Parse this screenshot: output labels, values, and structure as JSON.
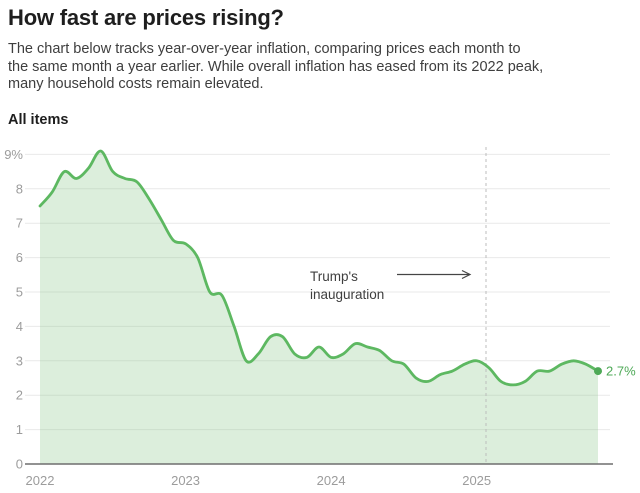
{
  "header": {
    "title": "How fast are prices rising?",
    "subtitle_lines": [
      "The chart below tracks year-over-year inflation, comparing prices each month to",
      "the same month a year earlier. While overall inflation has eased from its 2022 peak,",
      "many household costs remain elevated."
    ],
    "series_label": "All items"
  },
  "chart_data": {
    "type": "area",
    "title": "All items",
    "unit": "percent year-over-year",
    "x_start": "2022-01",
    "x_end": "2025-11",
    "frequency": "monthly",
    "series": [
      {
        "name": "All items",
        "values_by_year": {
          "2022": [
            7.5,
            7.9,
            8.5,
            8.3,
            8.6,
            9.1,
            8.5,
            8.3,
            8.2,
            7.7,
            7.1,
            6.5
          ],
          "2023": [
            6.4,
            6.0,
            5.0,
            4.9,
            4.0,
            3.0,
            3.2,
            3.7,
            3.7,
            3.2,
            3.1,
            3.4
          ],
          "2024": [
            3.1,
            3.2,
            3.5,
            3.4,
            3.3,
            3.0,
            2.9,
            2.5,
            2.4,
            2.6,
            2.7,
            2.9
          ],
          "2025": [
            3.0,
            2.8,
            2.4,
            2.3,
            2.4,
            2.7,
            2.7,
            2.9,
            3.0,
            2.9,
            2.7
          ]
        }
      }
    ],
    "y_axis": {
      "ticks": [
        0,
        1,
        2,
        3,
        4,
        5,
        6,
        7,
        8,
        9
      ],
      "tick_labels": [
        "0",
        "1",
        "2",
        "3",
        "4",
        "5",
        "6",
        "7",
        "8",
        "9%"
      ],
      "ylim": [
        0,
        9.35
      ],
      "grid": true
    },
    "x_axis": {
      "tick_labels": [
        "2022",
        "2023",
        "2024",
        "2025"
      ]
    },
    "annotation": {
      "lines": [
        "Trump's",
        "inauguration"
      ],
      "event": "2025-01-20",
      "event_line_style": "dashed"
    },
    "end_point": {
      "label": "2.7%",
      "value": 2.7
    },
    "colors": {
      "line": "#5db861",
      "fill": "rgba(125,193,125,0.27)",
      "dot": "#4ea957",
      "end_label": "#4ea957",
      "gridline": "#e9e9e9",
      "baseline": "#6e6e6e",
      "event_line": "#bdbdbd",
      "axis_text": "#9c9c9c",
      "annotation_text": "#3f3f3f"
    },
    "legend": "none"
  }
}
